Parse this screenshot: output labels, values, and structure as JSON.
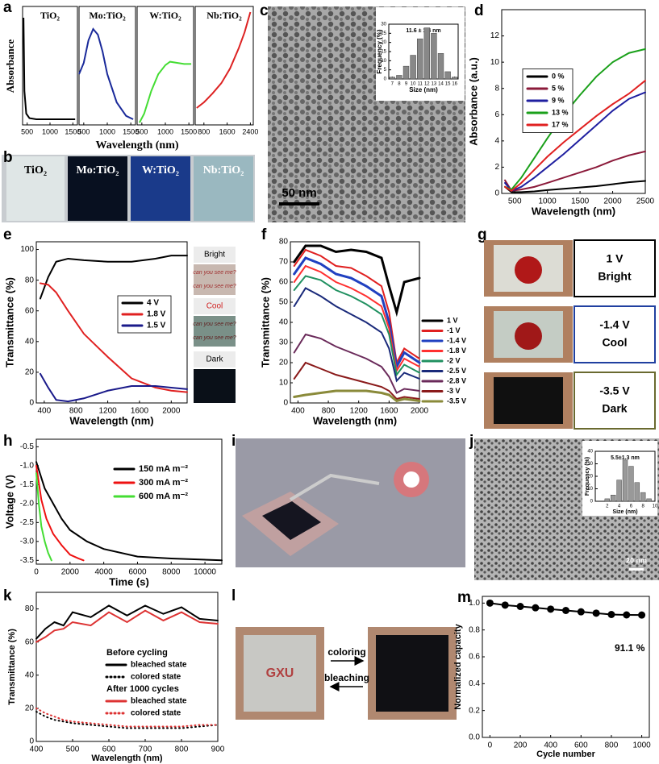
{
  "chart_data": [
    {
      "panel": "a",
      "type": "line",
      "ylabel": "Absorbance",
      "xlabel": "Wavelength (nm)",
      "ylim": [
        0,
        1.05
      ],
      "subplots": [
        {
          "title": "TiO₂",
          "color": "#000000",
          "xlim": [
            400,
            1600
          ],
          "xticks": [
            500,
            1000,
            1500
          ],
          "x": [
            420,
            440,
            480,
            550,
            700,
            1000,
            1300,
            1550
          ],
          "values": [
            0.95,
            0.3,
            0.1,
            0.06,
            0.05,
            0.05,
            0.05,
            0.05
          ]
        },
        {
          "title": "Mo:TiO₂",
          "color": "#1a2a9a",
          "xlim": [
            400,
            1600
          ],
          "xticks": [
            500,
            1000,
            1500
          ],
          "x": [
            400,
            500,
            600,
            700,
            800,
            900,
            1000,
            1200,
            1400,
            1550
          ],
          "values": [
            0.45,
            0.55,
            0.75,
            0.85,
            0.8,
            0.65,
            0.45,
            0.2,
            0.08,
            0.05
          ]
        },
        {
          "title": "W:TiO₂",
          "color": "#44dd33",
          "xlim": [
            400,
            1600
          ],
          "xticks": [
            500,
            1000,
            1500
          ],
          "x": [
            450,
            550,
            700,
            850,
            1000,
            1100,
            1250,
            1400,
            1550
          ],
          "values": [
            0.02,
            0.1,
            0.3,
            0.45,
            0.53,
            0.56,
            0.55,
            0.54,
            0.54
          ]
        },
        {
          "title": "Nb:TiO₂",
          "color": "#dd2222",
          "xlim": [
            500,
            2500
          ],
          "xticks": [
            800,
            1600,
            2400
          ],
          "x": [
            550,
            800,
            1100,
            1400,
            1700,
            2000,
            2200,
            2400
          ],
          "values": [
            0.15,
            0.2,
            0.28,
            0.37,
            0.5,
            0.68,
            0.82,
            1.0
          ]
        }
      ]
    },
    {
      "type": "bar",
      "title": "11.6 ± 1.4 nm",
      "xlabel": "Size (nm)",
      "ylabel": "Frequency (%)",
      "color": "#888888",
      "x": [
        7,
        8,
        9,
        10,
        11,
        12,
        13,
        14,
        15,
        16
      ],
      "values": [
        1,
        2,
        7,
        13,
        22,
        28,
        25,
        14,
        4,
        1
      ],
      "xlim": [
        6.5,
        16.5
      ],
      "xticks": [
        7,
        8,
        9,
        10,
        11,
        12,
        13,
        14,
        15,
        16
      ],
      "ylim": [
        0,
        30
      ],
      "yticks": [
        0,
        5,
        10,
        15,
        20,
        25,
        30
      ]
    },
    {
      "panel": "d",
      "type": "line",
      "xlabel": "Wavelength (nm)",
      "ylabel": "Absorbance (a.u.)",
      "xlim": [
        300,
        2500
      ],
      "xticks": [
        500,
        1000,
        1500,
        2000,
        2500
      ],
      "ylim": [
        0,
        14
      ],
      "yticks": [
        0,
        2,
        4,
        6,
        8,
        10,
        12
      ],
      "x": [
        350,
        450,
        600,
        800,
        1000,
        1250,
        1500,
        1750,
        2000,
        2250,
        2500
      ],
      "series": [
        {
          "name": "0 %",
          "color": "#000000",
          "values": [
            0.5,
            0.1,
            0.1,
            0.15,
            0.25,
            0.35,
            0.45,
            0.55,
            0.7,
            0.85,
            0.95
          ]
        },
        {
          "name": "5 %",
          "color": "#8b1a3a",
          "values": [
            1.0,
            0.2,
            0.3,
            0.5,
            0.8,
            1.2,
            1.6,
            2.0,
            2.5,
            2.9,
            3.2
          ]
        },
        {
          "name": "9 %",
          "color": "#1f1fa0",
          "values": [
            0.8,
            0.2,
            0.5,
            1.2,
            2.0,
            3.0,
            4.1,
            5.2,
            6.3,
            7.2,
            7.7
          ]
        },
        {
          "name": "13 %",
          "color": "#1aa01a",
          "values": [
            0.5,
            0.3,
            1.2,
            2.7,
            4.2,
            6.0,
            7.5,
            8.9,
            10.0,
            10.7,
            11.0
          ]
        },
        {
          "name": "17 %",
          "color": "#e02020",
          "values": [
            0.5,
            0.2,
            0.8,
            1.8,
            2.8,
            3.9,
            4.9,
            5.9,
            6.8,
            7.6,
            8.6
          ]
        }
      ]
    },
    {
      "panel": "e",
      "type": "line",
      "xlabel": "Wavelength (nm)",
      "ylabel": "Transmittance (%)",
      "xlim": [
        300,
        2200
      ],
      "xticks": [
        400,
        800,
        1200,
        1600,
        2000
      ],
      "ylim": [
        0,
        105
      ],
      "yticks": [
        0,
        20,
        40,
        60,
        80,
        100
      ],
      "x": [
        350,
        450,
        550,
        700,
        900,
        1200,
        1500,
        1800,
        2000,
        2200
      ],
      "series": [
        {
          "name": "4 V",
          "color": "#000000",
          "values": [
            68,
            82,
            92,
            94,
            93,
            92,
            92,
            94,
            96,
            96
          ]
        },
        {
          "name": "1.8 V",
          "color": "#e02020",
          "values": [
            78,
            77,
            72,
            60,
            45,
            30,
            16,
            10,
            8,
            7
          ]
        },
        {
          "name": "1.5 V",
          "color": "#1a1a8a",
          "values": [
            19,
            10,
            2,
            1,
            3,
            8,
            11,
            11,
            10,
            9
          ]
        }
      ]
    },
    {
      "panel": "f",
      "type": "line",
      "xlabel": "Wavelength (nm)",
      "ylabel": "Transmittance (%)",
      "xlim": [
        300,
        2000
      ],
      "xticks": [
        400,
        800,
        1200,
        1600,
        2000
      ],
      "ylim": [
        0,
        80
      ],
      "yticks": [
        0,
        10,
        20,
        30,
        40,
        50,
        60,
        70,
        80
      ],
      "x": [
        350,
        500,
        700,
        900,
        1100,
        1300,
        1500,
        1600,
        1700,
        1800,
        2000
      ],
      "series": [
        {
          "name": "1 V",
          "color": "#000000",
          "width": 3,
          "values": [
            70,
            78,
            78,
            75,
            76,
            75,
            72,
            58,
            45,
            60,
            62
          ]
        },
        {
          "name": "-1 V",
          "color": "#e02020",
          "values": [
            68,
            76,
            73,
            68,
            67,
            63,
            58,
            45,
            20,
            27,
            22
          ]
        },
        {
          "name": "-1.4 V",
          "color": "#2040c0",
          "width": 3,
          "values": [
            64,
            72,
            69,
            64,
            62,
            58,
            53,
            40,
            18,
            25,
            20
          ]
        },
        {
          "name": "-1.8 V",
          "color": "#ff3030",
          "values": [
            60,
            68,
            65,
            60,
            57,
            53,
            48,
            37,
            16,
            22,
            18
          ]
        },
        {
          "name": "-2 V",
          "color": "#209060",
          "values": [
            56,
            63,
            61,
            56,
            53,
            49,
            44,
            34,
            14,
            19,
            15
          ]
        },
        {
          "name": "-2.5 V",
          "color": "#1a2a7a",
          "values": [
            48,
            57,
            53,
            48,
            44,
            40,
            35,
            27,
            11,
            15,
            12
          ]
        },
        {
          "name": "-2.8 V",
          "color": "#6a2a5a",
          "values": [
            25,
            34,
            32,
            28,
            25,
            22,
            18,
            13,
            5,
            7,
            6
          ]
        },
        {
          "name": "-3 V",
          "color": "#8a1a1a",
          "values": [
            12,
            20,
            17,
            14,
            12,
            10,
            8,
            6,
            2,
            3,
            2
          ]
        },
        {
          "name": "-3.5 V",
          "color": "#8a8a3a",
          "width": 3,
          "values": [
            3,
            4,
            5,
            6,
            6,
            6,
            5,
            4,
            1,
            2,
            1
          ]
        }
      ]
    },
    {
      "panel": "h",
      "type": "line",
      "xlabel": "Time (s)",
      "ylabel": "Voltage (V)",
      "xlim": [
        0,
        11000
      ],
      "xticks": [
        0,
        2000,
        4000,
        6000,
        8000,
        10000
      ],
      "ylim": [
        -3.6,
        -0.3
      ],
      "yticks": [
        -0.5,
        {
          "value": -1,
          "label": "-1.0"
        },
        -1.5,
        {
          "value": -2,
          "label": "-2.0"
        },
        -2.5,
        {
          "value": -3,
          "label": "-3.0"
        },
        -3.5
      ],
      "series": [
        {
          "name": "150 mA m⁻²",
          "color": "#000000",
          "x": [
            0,
            500,
            1000,
            1500,
            2000,
            3000,
            4000,
            6000,
            8000,
            11000
          ],
          "values": [
            -0.9,
            -1.6,
            -2.0,
            -2.4,
            -2.7,
            -3.0,
            -3.2,
            -3.4,
            -3.45,
            -3.5
          ]
        },
        {
          "name": "300 mA m⁻²",
          "color": "#ee1111",
          "x": [
            0,
            300,
            600,
            1000,
            1500,
            2000,
            2500,
            2800
          ],
          "values": [
            -1.0,
            -1.9,
            -2.4,
            -2.8,
            -3.1,
            -3.35,
            -3.45,
            -3.5
          ]
        },
        {
          "name": "600 mA m⁻²",
          "color": "#44dd33",
          "x": [
            0,
            150,
            300,
            500,
            700,
            900
          ],
          "values": [
            -1.2,
            -2.0,
            -2.6,
            -3.0,
            -3.3,
            -3.5
          ]
        }
      ]
    },
    {
      "type": "bar",
      "title": "5.5±1.3 nm",
      "xlabel": "Size (nm)",
      "ylabel": "Frequency (%)",
      "color": "#999999",
      "x": [
        2,
        3,
        4,
        5,
        6,
        7,
        8,
        9
      ],
      "values": [
        2,
        5,
        17,
        33,
        28,
        15,
        7,
        2
      ],
      "xlim": [
        0,
        10
      ],
      "xticks": [
        2,
        4,
        6,
        8,
        10
      ],
      "ylim": [
        0,
        40
      ],
      "yticks": [
        0,
        10,
        20,
        30,
        40
      ]
    },
    {
      "panel": "k",
      "type": "line",
      "xlabel": "Wavelength (nm)",
      "ylabel": "Transmittance (%)",
      "xlim": [
        400,
        900
      ],
      "xticks": [
        400,
        500,
        600,
        700,
        800,
        900
      ],
      "ylim": [
        0,
        90
      ],
      "yticks": [
        0,
        20,
        40,
        60,
        80
      ],
      "legend_headers": [
        "Before cycling",
        "After 1000 cycles"
      ],
      "x": [
        400,
        425,
        450,
        475,
        500,
        550,
        600,
        650,
        700,
        750,
        800,
        850,
        900
      ],
      "series": [
        {
          "name": "bleached state",
          "color": "#000000",
          "style": "solid",
          "values": [
            62,
            68,
            72,
            70,
            78,
            75,
            82,
            76,
            82,
            77,
            81,
            74,
            73
          ]
        },
        {
          "name": "colored state",
          "color": "#000000",
          "style": "dotted",
          "values": [
            18,
            15,
            13,
            12,
            11,
            10,
            9,
            8,
            8,
            8,
            8,
            9,
            10
          ]
        },
        {
          "name": "bleached state",
          "color": "#dd3333",
          "style": "solid",
          "values": [
            60,
            63,
            67,
            68,
            72,
            70,
            78,
            72,
            79,
            73,
            78,
            72,
            71
          ]
        },
        {
          "name": "colored state",
          "color": "#dd3333",
          "style": "dotted",
          "values": [
            20,
            17,
            15,
            13,
            12,
            11,
            10,
            9,
            9,
            9,
            9,
            10,
            10
          ]
        }
      ]
    },
    {
      "panel": "m",
      "type": "line",
      "markers": true,
      "xlabel": "Cycle number",
      "ylabel": "Normalized capacity",
      "annotation": "91.1 %",
      "color": "#000000",
      "xlim": [
        -50,
        1050
      ],
      "xticks": [
        0,
        200,
        400,
        600,
        800,
        1000
      ],
      "ylim": [
        0,
        1.05
      ],
      "yticks": [
        {
          "value": 0,
          "label": "0.0"
        },
        0.2,
        0.4,
        0.6,
        0.8,
        {
          "value": 1,
          "label": "1.0"
        }
      ],
      "x": [
        0,
        100,
        200,
        300,
        400,
        500,
        600,
        700,
        800,
        900,
        1000
      ],
      "series": [
        {
          "color": "#000000",
          "values": [
            1.0,
            0.985,
            0.975,
            0.965,
            0.955,
            0.945,
            0.935,
            0.925,
            0.915,
            0.912,
            0.911
          ]
        }
      ]
    }
  ],
  "figure": {
    "b": {
      "panel": "b",
      "labels": [
        "TiO₂",
        "Mo:TiO₂",
        "W:TiO₂",
        "Nb:TiO₂"
      ]
    },
    "c": {
      "panel": "c",
      "scale_bar": "50 nm"
    },
    "e_side": {
      "labels": [
        "Bright",
        "can you see me?",
        "can you see me?",
        "Cool",
        "can you see me?",
        "can you see me?",
        "Dark"
      ]
    },
    "g": {
      "panel": "g",
      "rows": [
        {
          "voltage": "1 V",
          "state": "Bright"
        },
        {
          "voltage": "-1.4 V",
          "state": "Cool"
        },
        {
          "voltage": "-3.5 V",
          "state": "Dark"
        }
      ]
    },
    "i": {
      "panel": "i"
    },
    "j": {
      "panel": "j",
      "scale_bar": "20 nm"
    },
    "l": {
      "panel": "l",
      "label": "GXU",
      "arrows": [
        "coloring",
        "bleaching"
      ]
    }
  }
}
